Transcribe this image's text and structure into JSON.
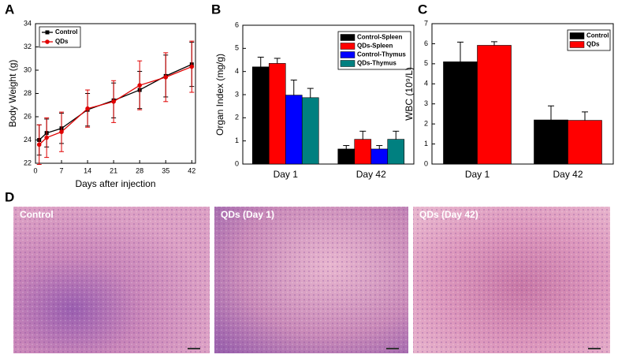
{
  "chart_data": [
    {
      "panel": "A",
      "type": "line",
      "xlabel": "Days after injection",
      "ylabel": "Body Weight (g)",
      "xlim": [
        0,
        43
      ],
      "xticks": [
        0,
        7,
        14,
        21,
        28,
        35,
        42
      ],
      "ylim": [
        22,
        34
      ],
      "yticks": [
        22,
        24,
        26,
        28,
        30,
        32,
        34
      ],
      "legend": "upper left",
      "x": [
        1,
        3,
        7,
        14,
        21,
        28,
        35,
        42
      ],
      "series": [
        {
          "name": "Control",
          "color": "#000000",
          "marker": "square",
          "values": [
            24.0,
            24.6,
            25.0,
            26.6,
            27.4,
            28.3,
            29.5,
            30.5
          ],
          "errors": [
            1.3,
            1.2,
            1.3,
            1.4,
            1.5,
            1.6,
            1.8,
            1.9
          ]
        },
        {
          "name": "QDs",
          "color": "#e00000",
          "marker": "circle",
          "values": [
            23.6,
            24.2,
            24.7,
            26.7,
            27.3,
            28.7,
            29.4,
            30.3
          ],
          "errors": [
            1.7,
            1.7,
            1.7,
            1.6,
            1.8,
            2.1,
            2.1,
            2.2
          ]
        }
      ]
    },
    {
      "panel": "B",
      "type": "bar",
      "ylabel": "Organ Index (mg/g)",
      "ylim": [
        0,
        6
      ],
      "yticks": [
        0,
        1,
        2,
        3,
        4,
        5,
        6
      ],
      "legend": "upper right",
      "categories": [
        "Day 1",
        "Day 42"
      ],
      "series": [
        {
          "name": "Control-Spleen",
          "color": "#000000",
          "values": [
            4.2,
            0.65
          ],
          "errors": [
            0.42,
            0.15
          ]
        },
        {
          "name": "QDs-Spleen",
          "color": "#ff0000",
          "values": [
            4.35,
            1.07
          ],
          "errors": [
            0.22,
            0.35
          ]
        },
        {
          "name": "Control-Thymus",
          "color": "#0000ff",
          "values": [
            2.98,
            0.65
          ],
          "errors": [
            0.65,
            0.15
          ]
        },
        {
          "name": "QDs-Thymus",
          "color": "#008080",
          "values": [
            2.87,
            1.07
          ],
          "errors": [
            0.4,
            0.35
          ]
        }
      ]
    },
    {
      "panel": "C",
      "type": "bar",
      "ylabel": "WBC (10⁹/L)",
      "ylim": [
        0,
        7
      ],
      "yticks": [
        0,
        1,
        2,
        3,
        4,
        5,
        6,
        7
      ],
      "legend": "upper right",
      "categories": [
        "Day 1",
        "Day 42"
      ],
      "series": [
        {
          "name": "Control",
          "color": "#000000",
          "values": [
            5.1,
            2.2
          ],
          "errors": [
            0.98,
            0.7
          ]
        },
        {
          "name": "QDs",
          "color": "#ff0000",
          "values": [
            5.92,
            2.18
          ],
          "errors": [
            0.18,
            0.42
          ]
        }
      ]
    }
  ],
  "panel_d": {
    "panel": "D",
    "images": [
      "Control",
      "QDs (Day 1)",
      "QDs (Day 42)"
    ]
  }
}
